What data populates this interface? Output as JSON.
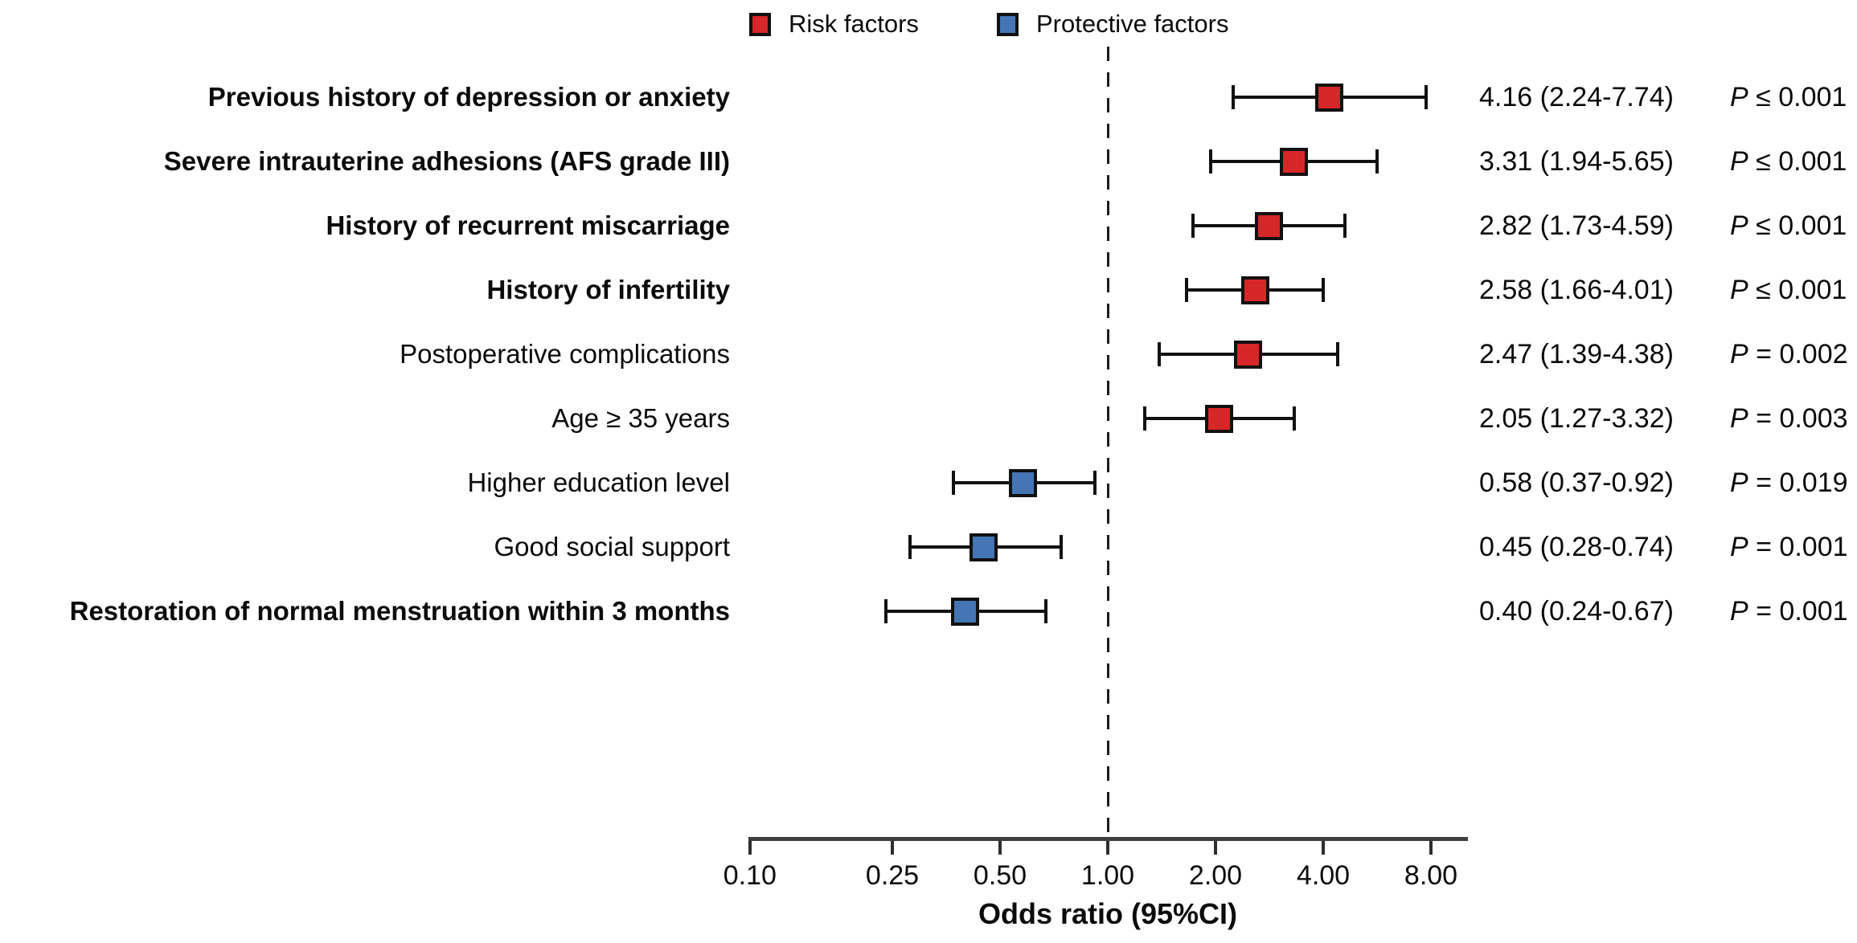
{
  "figure": {
    "background": "#ffffff",
    "text_color": "#0b0b0b"
  },
  "chart_data": {
    "type": "forest",
    "title": "",
    "xlabel": "Odds ratio (95%CI)",
    "x_scale": "log2",
    "x_tick_labels": [
      "0.10",
      "0.25",
      "0.50",
      "1.00",
      "2.00",
      "4.00",
      "8.00"
    ],
    "x_tick_values": [
      0.1,
      0.25,
      0.5,
      1.0,
      2.0,
      4.0,
      8.0
    ],
    "xlim": [
      0.1,
      10.2
    ],
    "reference_line": 1.0,
    "grid": false,
    "legend_position": "top",
    "legend": [
      {
        "label": "Risk factors",
        "group": "risk",
        "color": "#d62728"
      },
      {
        "label": "Protective factors",
        "group": "protective",
        "color": "#4575b4"
      }
    ],
    "rows": [
      {
        "label": "Previous history of depression or anxiety",
        "bold": true,
        "group": "risk",
        "or": 4.16,
        "ci_low": 2.24,
        "ci_high": 7.74,
        "estimate_text": "4.16 (2.24-7.74)",
        "p_text": "P ≤ 0.001"
      },
      {
        "label": "Severe intrauterine adhesions (AFS grade III)",
        "bold": true,
        "group": "risk",
        "or": 3.31,
        "ci_low": 1.94,
        "ci_high": 5.65,
        "estimate_text": "3.31 (1.94-5.65)",
        "p_text": "P ≤ 0.001"
      },
      {
        "label": "History of recurrent miscarriage",
        "bold": true,
        "group": "risk",
        "or": 2.82,
        "ci_low": 1.73,
        "ci_high": 4.59,
        "estimate_text": "2.82 (1.73-4.59)",
        "p_text": "P ≤ 0.001"
      },
      {
        "label": "History of infertility",
        "bold": true,
        "group": "risk",
        "or": 2.58,
        "ci_low": 1.66,
        "ci_high": 4.01,
        "estimate_text": "2.58 (1.66-4.01)",
        "p_text": "P ≤ 0.001"
      },
      {
        "label": "Postoperative complications",
        "bold": false,
        "group": "risk",
        "or": 2.47,
        "ci_low": 1.39,
        "ci_high": 4.38,
        "estimate_text": "2.47 (1.39-4.38)",
        "p_text": "P = 0.002"
      },
      {
        "label": "Age ≥ 35 years",
        "bold": false,
        "group": "risk",
        "or": 2.05,
        "ci_low": 1.27,
        "ci_high": 3.32,
        "estimate_text": "2.05 (1.27-3.32)",
        "p_text": "P = 0.003"
      },
      {
        "label": "Higher education level",
        "bold": false,
        "group": "protective",
        "or": 0.58,
        "ci_low": 0.37,
        "ci_high": 0.92,
        "estimate_text": "0.58 (0.37-0.92)",
        "p_text": "P = 0.019"
      },
      {
        "label": "Good social support",
        "bold": false,
        "group": "protective",
        "or": 0.45,
        "ci_low": 0.28,
        "ci_high": 0.74,
        "estimate_text": "0.45 (0.28-0.74)",
        "p_text": "P = 0.001"
      },
      {
        "label": "Restoration of normal menstruation within 3 months",
        "bold": true,
        "group": "protective",
        "or": 0.4,
        "ci_low": 0.24,
        "ci_high": 0.67,
        "estimate_text": "0.40 (0.24-0.67)",
        "p_text": "P = 0.001"
      }
    ]
  }
}
